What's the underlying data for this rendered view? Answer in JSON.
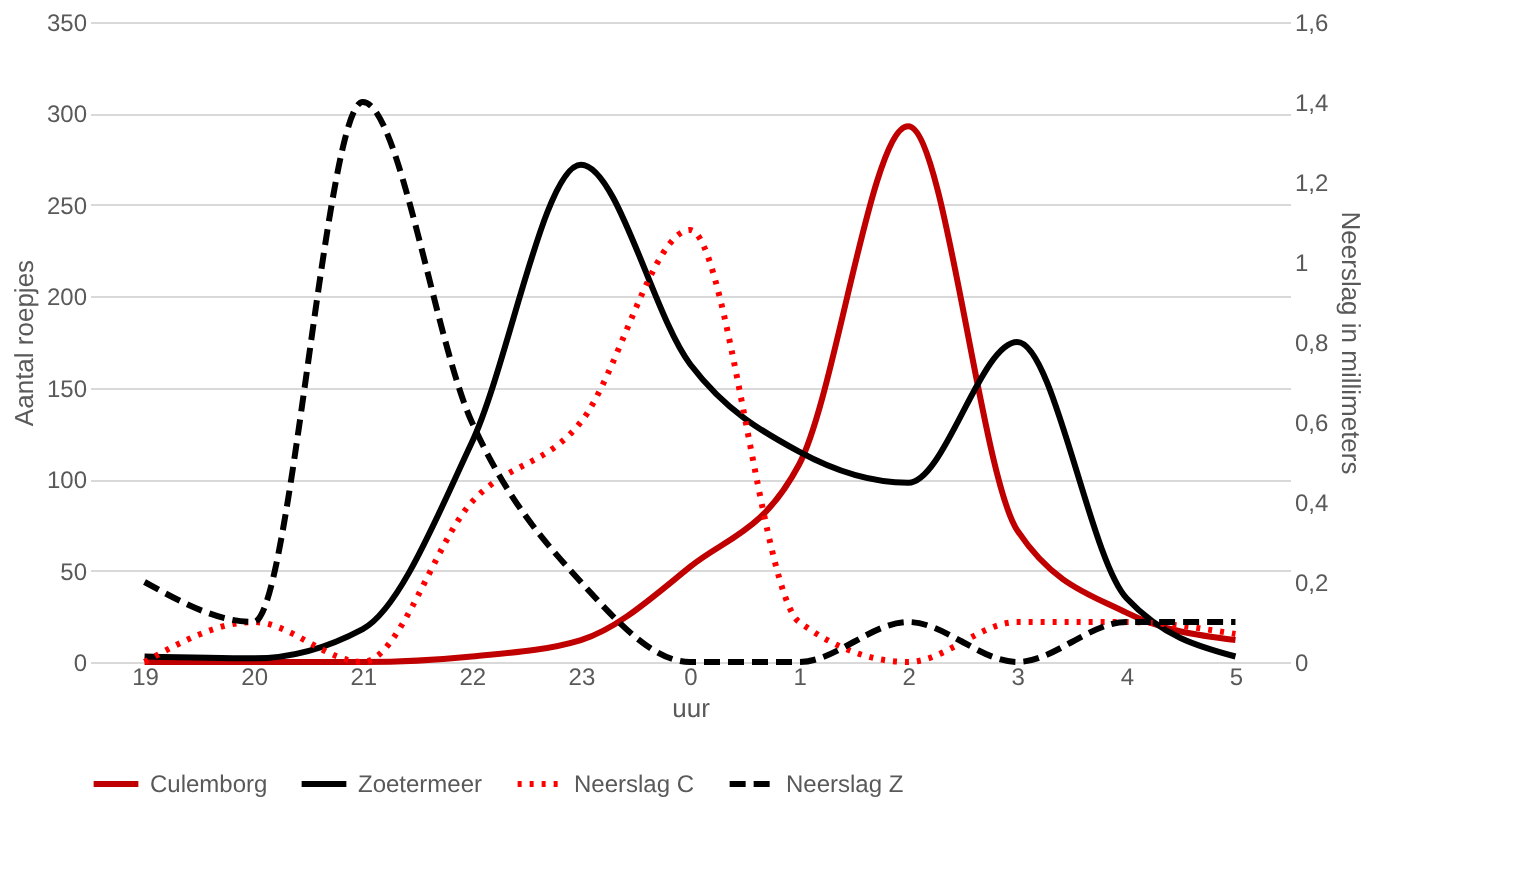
{
  "chart_data": {
    "type": "line",
    "xlabel": "uur",
    "ylabel": "Aantal roepjes",
    "y2label": "Neerslag in millimeters",
    "categories": [
      "19",
      "20",
      "21",
      "22",
      "23",
      "0",
      "1",
      "2",
      "3",
      "4",
      "5"
    ],
    "series": [
      {
        "name": "Culemborg",
        "color": "#c00000",
        "line_style": "solid",
        "values": [
          0,
          0,
          0,
          3,
          12,
          52,
          108,
          293,
          72,
          27,
          12
        ]
      },
      {
        "name": "Zoetermeer",
        "color": "#000000",
        "line_style": "solid",
        "values": [
          3,
          2,
          18,
          120,
          272,
          163,
          115,
          98,
          175,
          35,
          3
        ]
      },
      {
        "name": "Neerslag C",
        "color": "#ff0000",
        "line_style": "dotted",
        "axis": "y2",
        "values": [
          0,
          0.1,
          0,
          0.4,
          0.6,
          1.08,
          0.1,
          0,
          0.1,
          0.1,
          0.07
        ]
      },
      {
        "name": "Neerslag Z",
        "color": "#000000",
        "line_style": "dashed",
        "axis": "y2",
        "values": [
          0.2,
          0.1,
          1.4,
          0.6,
          0.2,
          0,
          0,
          0.1,
          0,
          0.1,
          0.1
        ]
      }
    ],
    "ylim": [
      0,
      350
    ],
    "yticks": [
      0,
      50,
      100,
      150,
      200,
      250,
      300,
      350
    ],
    "y2lim": [
      0,
      1.6
    ],
    "y2ticks": [
      0,
      {
        "value": 0.2,
        "label": "0,2"
      },
      {
        "value": 0.4,
        "label": "0,4"
      },
      {
        "value": 0.6,
        "label": "0,6"
      },
      {
        "value": 0.8,
        "label": "0,8"
      },
      1,
      {
        "value": 1.2,
        "label": "1,2"
      },
      {
        "value": 1.4,
        "label": "1,4"
      },
      {
        "value": 1.6,
        "label": "1,6"
      }
    ],
    "grid": "y",
    "legend": "bottom",
    "marker": "none"
  }
}
